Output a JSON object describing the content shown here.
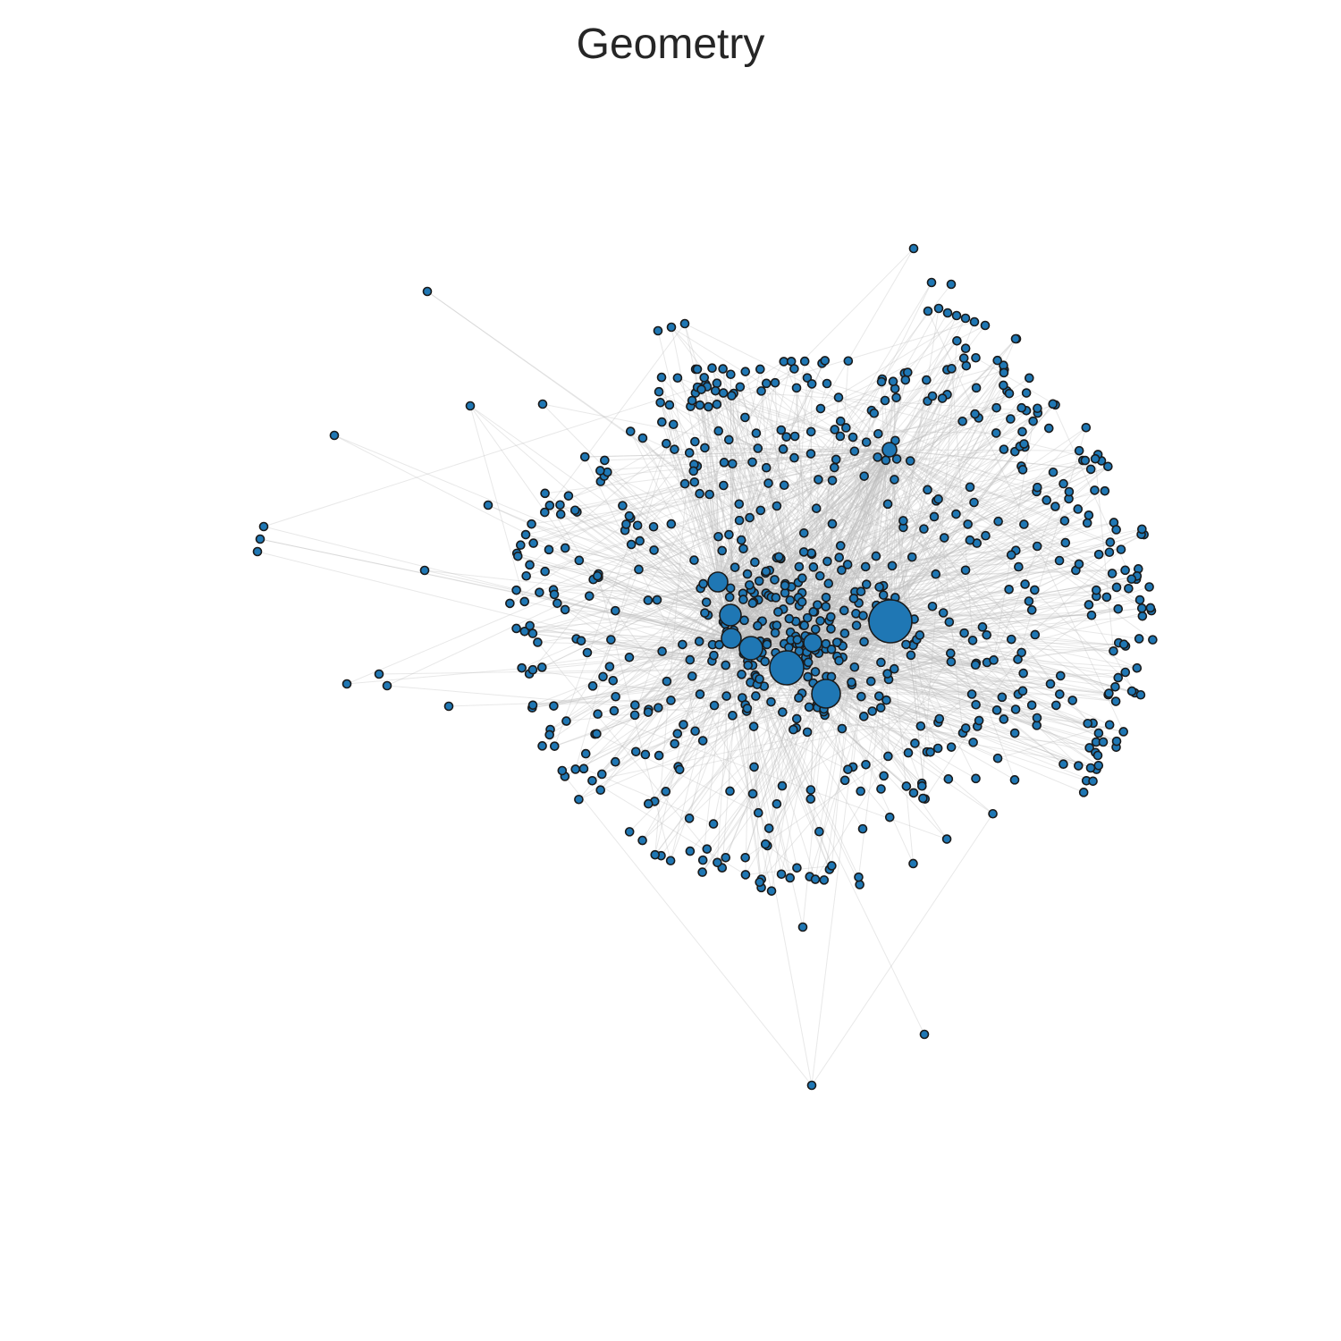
{
  "title": "Geometry",
  "colors": {
    "node_fill": "#1f77b4",
    "node_stroke": "#1a1a1a",
    "edge": "#bdbdbd",
    "background": "#ffffff"
  }
}
